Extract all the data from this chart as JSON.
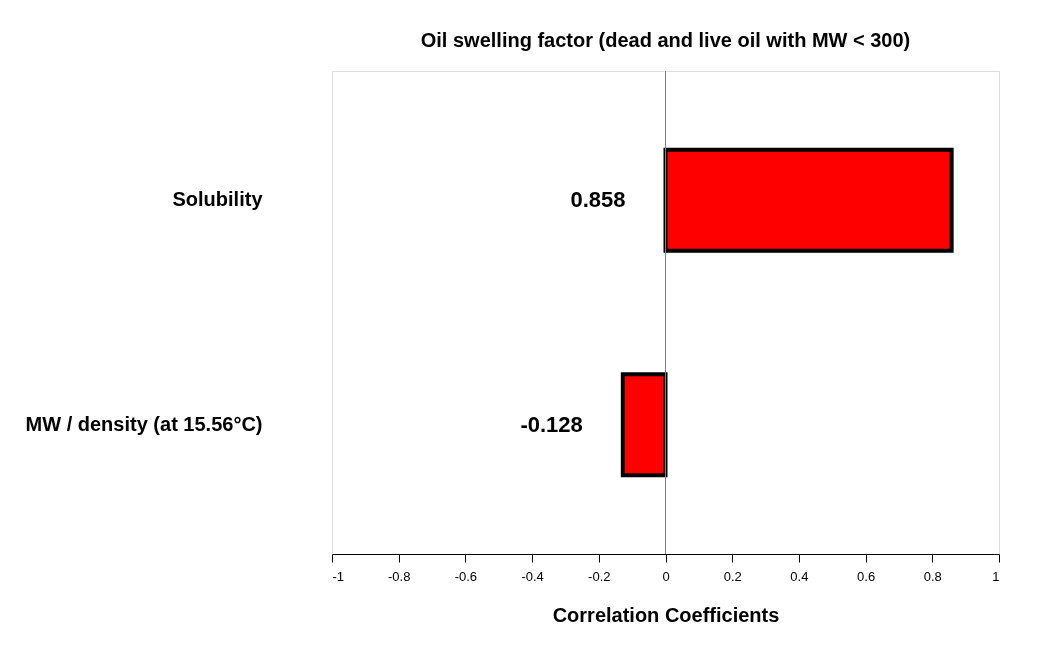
{
  "chart_data": {
    "type": "bar",
    "orientation": "horizontal",
    "title": "Oil swelling factor (dead and live oil with MW < 300)",
    "xlabel": "Correlation Coefficients",
    "categories": [
      "Solubility",
      "MW / density (at 15.56°C)"
    ],
    "values": [
      0.858,
      -0.128
    ],
    "color": "#ff0000",
    "data_labels": true,
    "xlim": [
      -1,
      1
    ],
    "xticks": [
      -1,
      -0.8,
      -0.6,
      -0.4,
      -0.2,
      0,
      0.2,
      0.4,
      0.6,
      0.8,
      1
    ],
    "ref_lines": [
      {
        "axis": "x",
        "value": 0,
        "color": "#808080"
      }
    ],
    "grid": false
  }
}
